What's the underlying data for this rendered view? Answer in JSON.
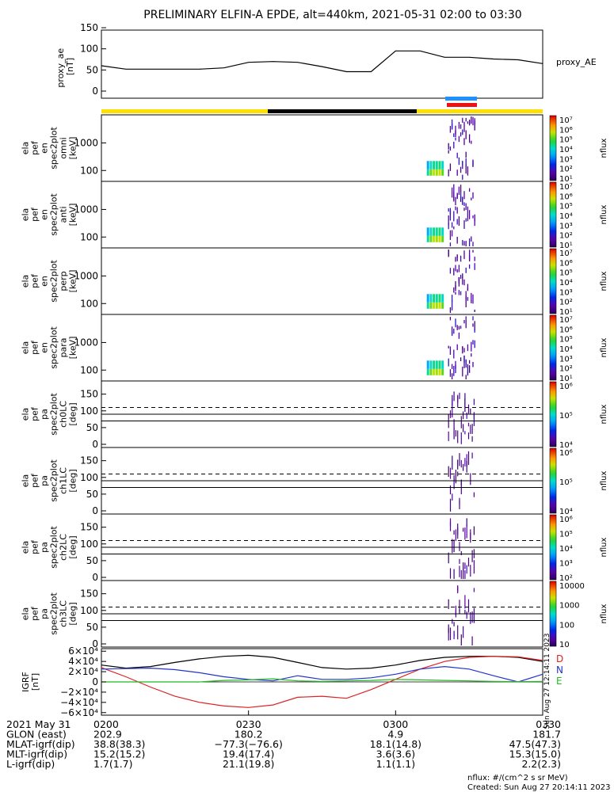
{
  "title": "PRELIMINARY ELFIN-A EPDE, alt=440km, 2021-05-31 02:00 to 03:30",
  "colors": {
    "sci_bar": "#ffe000",
    "shadow_bar": "#000000",
    "ifov_blue": "#1e90ff",
    "ifov_red": "#ee1111",
    "ae_line": "#000000",
    "grf_total": "#000000",
    "grf_d": "#dd2222",
    "grf_n": "#2233cc",
    "grf_e": "#22bb22"
  },
  "ae_panel": {
    "ylabel_lines": [
      "proxy_ae",
      "[nT]"
    ],
    "yticks": [
      "150",
      "100",
      "50",
      "0"
    ],
    "legend": "proxy_AE"
  },
  "energy_panels": [
    {
      "ylabel_lines": [
        "ela",
        "pef",
        "en",
        "spec2plot",
        "omni",
        "[keV]"
      ],
      "yticks": [
        "1000",
        "100"
      ],
      "cbar_ticks": [
        "10⁷",
        "10⁶",
        "10⁵",
        "10⁴",
        "10³",
        "10²",
        "10¹"
      ],
      "cbar_label": "nflux"
    },
    {
      "ylabel_lines": [
        "ela",
        "pef",
        "en",
        "spec2plot",
        "anti",
        "[keV]"
      ],
      "yticks": [
        "1000",
        "100"
      ],
      "cbar_ticks": [
        "10⁷",
        "10⁶",
        "10⁵",
        "10⁴",
        "10³",
        "10²",
        "10¹"
      ],
      "cbar_label": "nflux"
    },
    {
      "ylabel_lines": [
        "ela",
        "pef",
        "en",
        "spec2plot",
        "perp",
        "[keV]"
      ],
      "yticks": [
        "1000",
        "100"
      ],
      "cbar_ticks": [
        "10⁷",
        "10⁶",
        "10⁵",
        "10⁴",
        "10³",
        "10²",
        "10¹"
      ],
      "cbar_label": "nflux"
    },
    {
      "ylabel_lines": [
        "ela",
        "pef",
        "en",
        "spec2plot",
        "para",
        "[keV]"
      ],
      "yticks": [
        "1000",
        "100"
      ],
      "cbar_ticks": [
        "10⁷",
        "10⁶",
        "10⁵",
        "10⁴",
        "10³",
        "10²",
        "10¹"
      ],
      "cbar_label": "nflux"
    }
  ],
  "pa_panels": [
    {
      "ylabel_lines": [
        "ela",
        "pef",
        "pa",
        "spec2plot",
        "ch0LC",
        "[deg]"
      ],
      "yticks": [
        "150",
        "100",
        "50",
        "0"
      ],
      "cbar_ticks": [
        "10⁶",
        "10⁵",
        "10⁴"
      ],
      "cbar_label": "nflux"
    },
    {
      "ylabel_lines": [
        "ela",
        "pef",
        "pa",
        "spec2plot",
        "ch1LC",
        "[deg]"
      ],
      "yticks": [
        "150",
        "100",
        "50",
        "0"
      ],
      "cbar_ticks": [
        "10⁶",
        "10⁵",
        "10⁴"
      ],
      "cbar_label": "nflux"
    },
    {
      "ylabel_lines": [
        "ela",
        "pef",
        "pa",
        "spec2plot",
        "ch2LC",
        "[deg]"
      ],
      "yticks": [
        "150",
        "100",
        "50",
        "0"
      ],
      "cbar_ticks": [
        "10⁶",
        "10⁵",
        "10⁴",
        "10³",
        "10²"
      ],
      "cbar_label": "nflux"
    },
    {
      "ylabel_lines": [
        "ela",
        "pef",
        "pa",
        "spec2plot",
        "ch3LC",
        "[deg]"
      ],
      "yticks": [
        "150",
        "100",
        "50",
        "0"
      ],
      "cbar_ticks": [
        "10000",
        "1000",
        "100",
        "10"
      ],
      "cbar_label": "nflux"
    }
  ],
  "grf_panel": {
    "ylabel_lines": [
      "IGRF",
      "[nT]"
    ],
    "yticks": [
      "6×10⁴",
      "4×10⁴",
      "2×10⁴",
      "0",
      "−2×10⁴",
      "−4×10⁴",
      "−6×10⁴"
    ],
    "legend": [
      "D",
      "N",
      "E"
    ],
    "stamp": "Sun Aug 27 12:14:11 2023"
  },
  "footer": {
    "rows": [
      {
        "label": "2021 May 31",
        "values": [
          "0200",
          "0230",
          "0300",
          "0330"
        ]
      },
      {
        "label": "GLON (east)",
        "values": [
          "202.9",
          "180.2",
          "4.9",
          "181.7"
        ]
      },
      {
        "label": "MLAT-igrf(dip)",
        "values": [
          "38.8(38.3)",
          "−77.3(−76.6)",
          "18.1(14.8)",
          "47.5(47.3)"
        ]
      },
      {
        "label": "MLT-igrf(dip)",
        "values": [
          "15.2(15.2)",
          "19.4(17.4)",
          "3.6(3.6)",
          "15.3(15.0)"
        ]
      },
      {
        "label": "L-igrf(dip)",
        "values": [
          "1.7(1.7)",
          "21.1(19.8)",
          "1.1(1.1)",
          "2.2(2.3)"
        ]
      }
    ],
    "unit_note": "nflux: #/(cm^2 s sr MeV)",
    "created": "Created: Sun Aug 27 20:14:11 2023"
  },
  "chart_data": [
    {
      "type": "line",
      "x_axis": "time (UT, hhmm)",
      "x": [
        "0200",
        "0205",
        "0210",
        "0215",
        "0220",
        "0225",
        "0230",
        "0235",
        "0240",
        "0245",
        "0250",
        "0255",
        "0300",
        "0305",
        "0310",
        "0315",
        "0320",
        "0325",
        "0330"
      ],
      "series": [
        {
          "name": "proxy_AE",
          "values": [
            60,
            52,
            52,
            52,
            52,
            55,
            68,
            70,
            68,
            58,
            46,
            46,
            95,
            95,
            80,
            80,
            76,
            74,
            65
          ]
        }
      ],
      "ylim": [
        0,
        150
      ]
    },
    {
      "type": "heatmap",
      "description_panels": [
        "omni",
        "anti",
        "perp",
        "para"
      ],
      "ylim_keV": [
        60,
        7000
      ],
      "ylog": true,
      "active_interval": [
        "0312",
        "0316"
      ],
      "colorbar_range": [
        10,
        10000000
      ],
      "bursts": [
        {
          "t": 3.11,
          "e_lo": 90,
          "e_hi": 6000,
          "flux": 100000
        },
        {
          "t": 3.12,
          "e_lo": 80,
          "e_hi": 5500,
          "flux": 1000000
        },
        {
          "t": 3.13,
          "e_lo": 70,
          "e_hi": 5000,
          "flux": 3000000
        },
        {
          "t": 3.14,
          "e_lo": 65,
          "e_hi": 6500,
          "flux": 2000000
        },
        {
          "t": 3.15,
          "e_lo": 60,
          "e_hi": 7000,
          "flux": 5000000
        },
        {
          "t": 3.16,
          "e_lo": 70,
          "e_hi": 4000,
          "flux": 800000
        }
      ]
    },
    {
      "type": "heatmap",
      "description_panels": [
        "ch0LC",
        "ch1LC",
        "ch2LC",
        "ch3LC"
      ],
      "ylim_deg": [
        0,
        180
      ],
      "loss_cone_deg": [
        70,
        90
      ],
      "anti_loss_cone_deg": 110,
      "active_interval": [
        "0312",
        "0316"
      ]
    },
    {
      "type": "line",
      "x": [
        "0200",
        "0205",
        "0210",
        "0215",
        "0220",
        "0225",
        "0230",
        "0235",
        "0240",
        "0245",
        "0250",
        "0255",
        "0300",
        "0305",
        "0310",
        "0315",
        "0320",
        "0325",
        "0330"
      ],
      "series": [
        {
          "name": "total",
          "values": [
            33000,
            27000,
            30000,
            38000,
            45000,
            50000,
            52000,
            48000,
            38000,
            28000,
            25000,
            27000,
            33000,
            42000,
            48000,
            50000,
            50000,
            48000,
            40000
          ]
        },
        {
          "name": "D",
          "values": [
            28000,
            10000,
            -10000,
            -28000,
            -40000,
            -47000,
            -50000,
            -45000,
            -30000,
            -28000,
            -32000,
            -15000,
            5000,
            25000,
            40000,
            48000,
            50000,
            49000,
            42000
          ]
        },
        {
          "name": "N",
          "values": [
            25000,
            26000,
            27000,
            24000,
            18000,
            10000,
            5000,
            2000,
            12000,
            5000,
            5000,
            8000,
            15000,
            25000,
            30000,
            25000,
            12000,
            0,
            15000
          ]
        },
        {
          "name": "E",
          "values": [
            0,
            0,
            0,
            0,
            0,
            3000,
            4000,
            6000,
            2000,
            1000,
            2000,
            3000,
            5000,
            4000,
            3000,
            2000,
            1000,
            500,
            1000
          ]
        }
      ],
      "ylim": [
        -65000,
        65000
      ]
    }
  ]
}
